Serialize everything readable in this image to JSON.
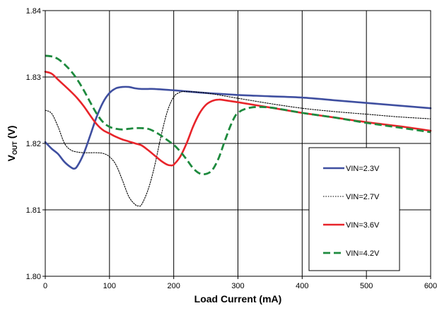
{
  "chart_data": {
    "type": "line",
    "title": "",
    "xlabel": "Load Current (mA)",
    "ylabel_main": "V",
    "ylabel_sub": "OUT",
    "ylabel_unit": " (V)",
    "xlim": [
      0,
      600
    ],
    "ylim": [
      1.8,
      1.84
    ],
    "x_ticks": [
      0,
      100,
      200,
      300,
      400,
      500,
      600
    ],
    "x_tick_labels": [
      "0",
      "100",
      "200",
      "300",
      "400",
      "500",
      "600"
    ],
    "y_ticks": [
      1.8,
      1.81,
      1.82,
      1.83,
      1.84
    ],
    "y_tick_labels": [
      "1.80",
      "1.81",
      "1.82",
      "1.83",
      "1.84"
    ],
    "grid": true,
    "legend_position": "right",
    "series": [
      {
        "name": "VIN=2.3V",
        "color": "#3f4fa0",
        "dash": "solid",
        "x": [
          0,
          10,
          20,
          30,
          40,
          45,
          50,
          60,
          70,
          80,
          90,
          100,
          110,
          120,
          130,
          140,
          150,
          160,
          170,
          200,
          250,
          300,
          350,
          400,
          450,
          500,
          550,
          600
        ],
        "y": [
          1.8202,
          1.8192,
          1.8184,
          1.8172,
          1.8164,
          1.8162,
          1.8166,
          1.8185,
          1.8212,
          1.824,
          1.8262,
          1.8276,
          1.8283,
          1.8285,
          1.8285,
          1.8283,
          1.8282,
          1.8282,
          1.8282,
          1.828,
          1.8276,
          1.8273,
          1.8271,
          1.8269,
          1.8265,
          1.8261,
          1.8257,
          1.8253
        ]
      },
      {
        "name": "VIN=2.7V",
        "color": "#000000",
        "dash": "dotted",
        "x": [
          0,
          10,
          20,
          30,
          40,
          50,
          60,
          70,
          80,
          90,
          100,
          110,
          120,
          130,
          140,
          145,
          150,
          160,
          170,
          180,
          190,
          200,
          210,
          220,
          250,
          300,
          350,
          400,
          450,
          500,
          550,
          600
        ],
        "y": [
          1.825,
          1.8245,
          1.8225,
          1.82,
          1.819,
          1.8187,
          1.8186,
          1.8186,
          1.8186,
          1.8185,
          1.818,
          1.8168,
          1.8145,
          1.812,
          1.8108,
          1.8106,
          1.8108,
          1.813,
          1.8165,
          1.821,
          1.8248,
          1.827,
          1.8277,
          1.8278,
          1.8276,
          1.8268,
          1.826,
          1.8253,
          1.8248,
          1.8244,
          1.824,
          1.8237
        ]
      },
      {
        "name": "VIN=3.6V",
        "color": "#e8242a",
        "dash": "solid",
        "x": [
          0,
          10,
          20,
          30,
          40,
          50,
          60,
          70,
          80,
          90,
          100,
          110,
          120,
          130,
          140,
          150,
          160,
          170,
          180,
          190,
          195,
          200,
          210,
          220,
          230,
          240,
          250,
          260,
          270,
          280,
          300,
          350,
          400,
          450,
          500,
          550,
          600
        ],
        "y": [
          1.8308,
          1.8305,
          1.8296,
          1.8287,
          1.8278,
          1.8268,
          1.8256,
          1.8242,
          1.8229,
          1.822,
          1.8215,
          1.821,
          1.8206,
          1.8203,
          1.82,
          1.8197,
          1.819,
          1.8182,
          1.8174,
          1.8168,
          1.8167,
          1.8168,
          1.818,
          1.82,
          1.8225,
          1.8245,
          1.8258,
          1.8264,
          1.8266,
          1.8265,
          1.8262,
          1.8254,
          1.8246,
          1.8239,
          1.8232,
          1.8226,
          1.8219
        ]
      },
      {
        "name": "VIN=4.2V",
        "color": "#1e8a3e",
        "dash": "dashed",
        "x": [
          0,
          10,
          20,
          30,
          40,
          50,
          60,
          70,
          80,
          90,
          100,
          110,
          120,
          130,
          140,
          150,
          160,
          170,
          180,
          190,
          200,
          210,
          220,
          230,
          240,
          250,
          260,
          270,
          280,
          290,
          300,
          320,
          350,
          400,
          450,
          500,
          550,
          600
        ],
        "y": [
          1.8332,
          1.8331,
          1.8327,
          1.8319,
          1.8309,
          1.8296,
          1.828,
          1.8262,
          1.8245,
          1.8232,
          1.8225,
          1.8222,
          1.8221,
          1.8222,
          1.8223,
          1.8223,
          1.8222,
          1.8218,
          1.8212,
          1.8205,
          1.8198,
          1.8188,
          1.8176,
          1.8163,
          1.8155,
          1.8154,
          1.816,
          1.8178,
          1.8205,
          1.823,
          1.8246,
          1.8254,
          1.8254,
          1.8246,
          1.8239,
          1.8231,
          1.8224,
          1.8217
        ]
      }
    ]
  }
}
